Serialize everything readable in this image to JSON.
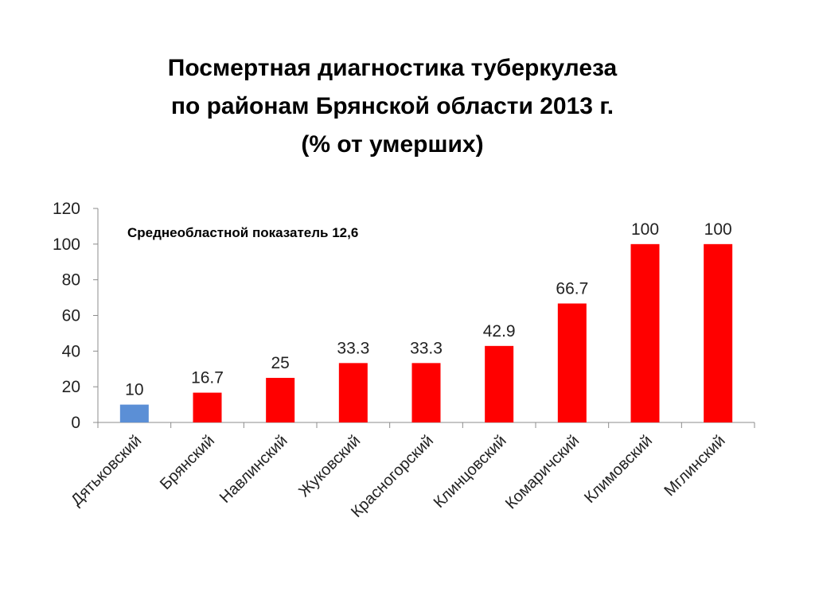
{
  "title": {
    "line1": "Посмертная диагностика туберкулеза",
    "line2": "по районам Брянской области 2013 г.",
    "line3": "(% от умерших)"
  },
  "chart_data": {
    "type": "bar",
    "categories": [
      "Дятьковский",
      "Брянский",
      "Навлинский",
      "Жуковский",
      "Красногорский",
      "Клинцовский",
      "Комаричский",
      "Климовский",
      "Мглинский"
    ],
    "values": [
      10,
      16.7,
      25,
      33.3,
      33.3,
      42.9,
      66.7,
      100,
      100
    ],
    "value_labels": [
      "10",
      "16.7",
      "25",
      "33.3",
      "33.3",
      "42.9",
      "66.7",
      "100",
      "100"
    ],
    "colors": [
      "#5b8fd6",
      "#ff0000",
      "#ff0000",
      "#ff0000",
      "#ff0000",
      "#ff0000",
      "#ff0000",
      "#ff0000",
      "#ff0000"
    ],
    "ylim": [
      0,
      120
    ],
    "yticks": [
      0,
      20,
      40,
      60,
      80,
      100,
      120
    ],
    "annotation": "Среднеобластной показатель 12,6",
    "grid": false,
    "legend": "none"
  }
}
